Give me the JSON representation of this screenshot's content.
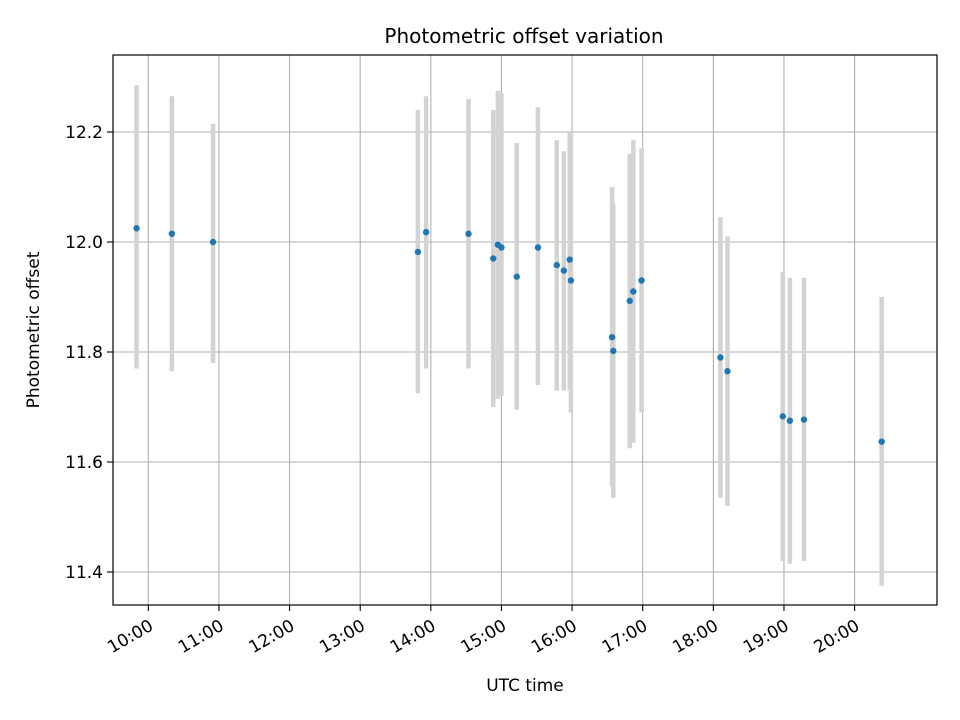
{
  "chart_data": {
    "type": "scatter",
    "title": "Photometric offset variation",
    "xlabel": "UTC time",
    "ylabel": "Photometric offset",
    "x_axis": {
      "type": "time",
      "range": [
        "09:30",
        "21:10"
      ],
      "ticks": [
        "10:00",
        "11:00",
        "12:00",
        "13:00",
        "14:00",
        "15:00",
        "16:00",
        "17:00",
        "18:00",
        "19:00",
        "20:00"
      ],
      "tick_rotation_deg": 30
    },
    "y_axis": {
      "range": [
        11.34,
        12.34
      ],
      "ticks": [
        "11.4",
        "11.6",
        "11.8",
        "12.0",
        "12.2"
      ]
    },
    "grid": true,
    "point_color": "#1f77b4",
    "errorbar_color": "#d3d3d3",
    "points": [
      {
        "time": "09:50",
        "y": 12.025,
        "low": 11.77,
        "high": 12.285
      },
      {
        "time": "10:20",
        "y": 12.015,
        "low": 11.765,
        "high": 12.265
      },
      {
        "time": "10:55",
        "y": 12.0,
        "low": 11.78,
        "high": 12.215
      },
      {
        "time": "13:49",
        "y": 11.982,
        "low": 11.725,
        "high": 12.24
      },
      {
        "time": "13:56",
        "y": 12.018,
        "low": 11.77,
        "high": 12.265
      },
      {
        "time": "14:32",
        "y": 12.015,
        "low": 11.77,
        "high": 12.26
      },
      {
        "time": "14:53",
        "y": 11.97,
        "low": 11.7,
        "high": 12.24
      },
      {
        "time": "14:57",
        "y": 11.995,
        "low": 11.715,
        "high": 12.275
      },
      {
        "time": "15:00",
        "y": 11.99,
        "low": 11.72,
        "high": 12.27
      },
      {
        "time": "15:13",
        "y": 11.937,
        "low": 11.695,
        "high": 12.18
      },
      {
        "time": "15:31",
        "y": 11.99,
        "low": 11.74,
        "high": 12.245
      },
      {
        "time": "15:47",
        "y": 11.958,
        "low": 11.73,
        "high": 12.185
      },
      {
        "time": "15:53",
        "y": 11.948,
        "low": 11.73,
        "high": 12.165
      },
      {
        "time": "15:58",
        "y": 11.968,
        "low": 11.73,
        "high": 12.2
      },
      {
        "time": "15:59",
        "y": 11.93,
        "low": 11.69,
        "high": 12.2
      },
      {
        "time": "16:34",
        "y": 11.827,
        "low": 11.555,
        "high": 12.1
      },
      {
        "time": "16:35",
        "y": 11.802,
        "low": 11.535,
        "high": 12.07
      },
      {
        "time": "16:49",
        "y": 11.893,
        "low": 11.625,
        "high": 12.16
      },
      {
        "time": "16:52",
        "y": 11.91,
        "low": 11.635,
        "high": 12.185
      },
      {
        "time": "16:59",
        "y": 11.93,
        "low": 11.69,
        "high": 12.17
      },
      {
        "time": "18:06",
        "y": 11.79,
        "low": 11.535,
        "high": 12.045
      },
      {
        "time": "18:12",
        "y": 11.765,
        "low": 11.52,
        "high": 12.01
      },
      {
        "time": "18:59",
        "y": 11.683,
        "low": 11.42,
        "high": 11.945
      },
      {
        "time": "19:05",
        "y": 11.675,
        "low": 11.415,
        "high": 11.935
      },
      {
        "time": "19:17",
        "y": 11.677,
        "low": 11.42,
        "high": 11.935
      },
      {
        "time": "20:23",
        "y": 11.637,
        "low": 11.375,
        "high": 11.9
      }
    ]
  }
}
